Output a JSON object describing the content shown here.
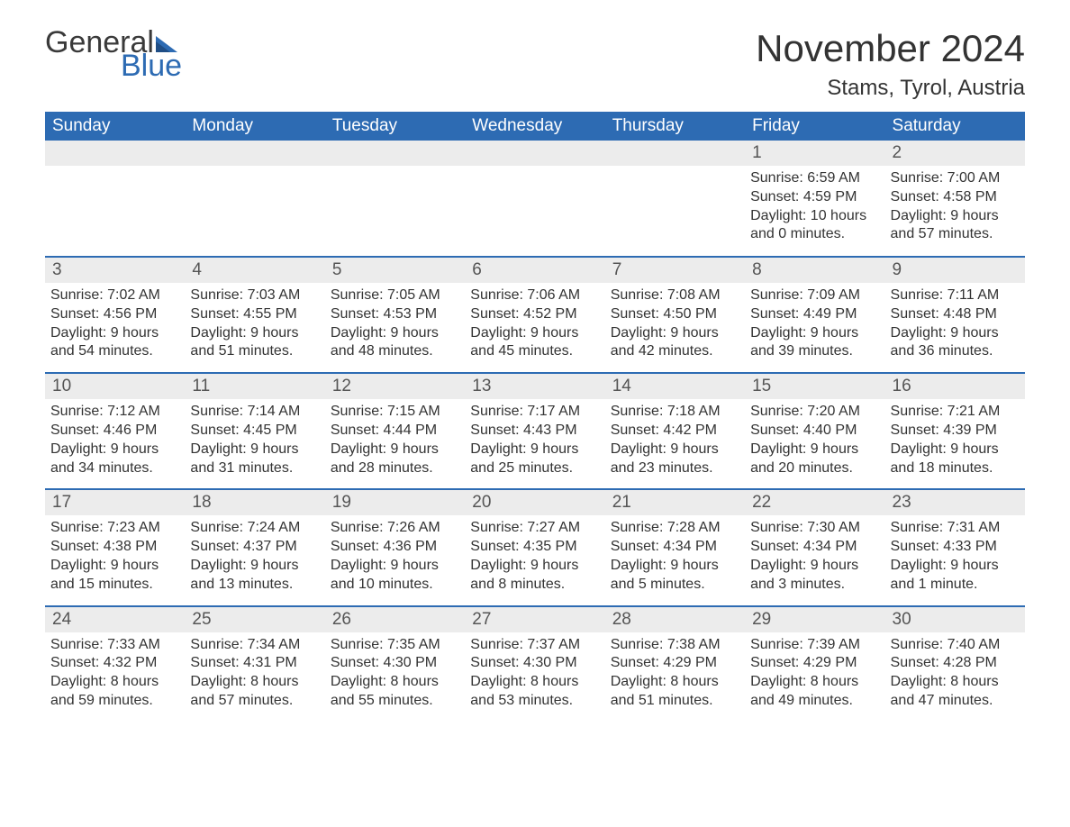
{
  "colors": {
    "header_bg": "#2d6bb3",
    "header_text": "#ffffff",
    "daynum_bg": "#ececec",
    "body_text": "#333333",
    "week_border": "#2d6bb3",
    "logo_gray": "#3a3a3a",
    "logo_blue": "#2d6bb3"
  },
  "logo": {
    "part1": "General",
    "part2": "Blue"
  },
  "title": "November 2024",
  "location": "Stams, Tyrol, Austria",
  "weekdays": [
    "Sunday",
    "Monday",
    "Tuesday",
    "Wednesday",
    "Thursday",
    "Friday",
    "Saturday"
  ],
  "weeks": [
    [
      {
        "n": "",
        "sr": "",
        "ss": "",
        "dl": ""
      },
      {
        "n": "",
        "sr": "",
        "ss": "",
        "dl": ""
      },
      {
        "n": "",
        "sr": "",
        "ss": "",
        "dl": ""
      },
      {
        "n": "",
        "sr": "",
        "ss": "",
        "dl": ""
      },
      {
        "n": "",
        "sr": "",
        "ss": "",
        "dl": ""
      },
      {
        "n": "1",
        "sr": "Sunrise: 6:59 AM",
        "ss": "Sunset: 4:59 PM",
        "dl": "Daylight: 10 hours and 0 minutes."
      },
      {
        "n": "2",
        "sr": "Sunrise: 7:00 AM",
        "ss": "Sunset: 4:58 PM",
        "dl": "Daylight: 9 hours and 57 minutes."
      }
    ],
    [
      {
        "n": "3",
        "sr": "Sunrise: 7:02 AM",
        "ss": "Sunset: 4:56 PM",
        "dl": "Daylight: 9 hours and 54 minutes."
      },
      {
        "n": "4",
        "sr": "Sunrise: 7:03 AM",
        "ss": "Sunset: 4:55 PM",
        "dl": "Daylight: 9 hours and 51 minutes."
      },
      {
        "n": "5",
        "sr": "Sunrise: 7:05 AM",
        "ss": "Sunset: 4:53 PM",
        "dl": "Daylight: 9 hours and 48 minutes."
      },
      {
        "n": "6",
        "sr": "Sunrise: 7:06 AM",
        "ss": "Sunset: 4:52 PM",
        "dl": "Daylight: 9 hours and 45 minutes."
      },
      {
        "n": "7",
        "sr": "Sunrise: 7:08 AM",
        "ss": "Sunset: 4:50 PM",
        "dl": "Daylight: 9 hours and 42 minutes."
      },
      {
        "n": "8",
        "sr": "Sunrise: 7:09 AM",
        "ss": "Sunset: 4:49 PM",
        "dl": "Daylight: 9 hours and 39 minutes."
      },
      {
        "n": "9",
        "sr": "Sunrise: 7:11 AM",
        "ss": "Sunset: 4:48 PM",
        "dl": "Daylight: 9 hours and 36 minutes."
      }
    ],
    [
      {
        "n": "10",
        "sr": "Sunrise: 7:12 AM",
        "ss": "Sunset: 4:46 PM",
        "dl": "Daylight: 9 hours and 34 minutes."
      },
      {
        "n": "11",
        "sr": "Sunrise: 7:14 AM",
        "ss": "Sunset: 4:45 PM",
        "dl": "Daylight: 9 hours and 31 minutes."
      },
      {
        "n": "12",
        "sr": "Sunrise: 7:15 AM",
        "ss": "Sunset: 4:44 PM",
        "dl": "Daylight: 9 hours and 28 minutes."
      },
      {
        "n": "13",
        "sr": "Sunrise: 7:17 AM",
        "ss": "Sunset: 4:43 PM",
        "dl": "Daylight: 9 hours and 25 minutes."
      },
      {
        "n": "14",
        "sr": "Sunrise: 7:18 AM",
        "ss": "Sunset: 4:42 PM",
        "dl": "Daylight: 9 hours and 23 minutes."
      },
      {
        "n": "15",
        "sr": "Sunrise: 7:20 AM",
        "ss": "Sunset: 4:40 PM",
        "dl": "Daylight: 9 hours and 20 minutes."
      },
      {
        "n": "16",
        "sr": "Sunrise: 7:21 AM",
        "ss": "Sunset: 4:39 PM",
        "dl": "Daylight: 9 hours and 18 minutes."
      }
    ],
    [
      {
        "n": "17",
        "sr": "Sunrise: 7:23 AM",
        "ss": "Sunset: 4:38 PM",
        "dl": "Daylight: 9 hours and 15 minutes."
      },
      {
        "n": "18",
        "sr": "Sunrise: 7:24 AM",
        "ss": "Sunset: 4:37 PM",
        "dl": "Daylight: 9 hours and 13 minutes."
      },
      {
        "n": "19",
        "sr": "Sunrise: 7:26 AM",
        "ss": "Sunset: 4:36 PM",
        "dl": "Daylight: 9 hours and 10 minutes."
      },
      {
        "n": "20",
        "sr": "Sunrise: 7:27 AM",
        "ss": "Sunset: 4:35 PM",
        "dl": "Daylight: 9 hours and 8 minutes."
      },
      {
        "n": "21",
        "sr": "Sunrise: 7:28 AM",
        "ss": "Sunset: 4:34 PM",
        "dl": "Daylight: 9 hours and 5 minutes."
      },
      {
        "n": "22",
        "sr": "Sunrise: 7:30 AM",
        "ss": "Sunset: 4:34 PM",
        "dl": "Daylight: 9 hours and 3 minutes."
      },
      {
        "n": "23",
        "sr": "Sunrise: 7:31 AM",
        "ss": "Sunset: 4:33 PM",
        "dl": "Daylight: 9 hours and 1 minute."
      }
    ],
    [
      {
        "n": "24",
        "sr": "Sunrise: 7:33 AM",
        "ss": "Sunset: 4:32 PM",
        "dl": "Daylight: 8 hours and 59 minutes."
      },
      {
        "n": "25",
        "sr": "Sunrise: 7:34 AM",
        "ss": "Sunset: 4:31 PM",
        "dl": "Daylight: 8 hours and 57 minutes."
      },
      {
        "n": "26",
        "sr": "Sunrise: 7:35 AM",
        "ss": "Sunset: 4:30 PM",
        "dl": "Daylight: 8 hours and 55 minutes."
      },
      {
        "n": "27",
        "sr": "Sunrise: 7:37 AM",
        "ss": "Sunset: 4:30 PM",
        "dl": "Daylight: 8 hours and 53 minutes."
      },
      {
        "n": "28",
        "sr": "Sunrise: 7:38 AM",
        "ss": "Sunset: 4:29 PM",
        "dl": "Daylight: 8 hours and 51 minutes."
      },
      {
        "n": "29",
        "sr": "Sunrise: 7:39 AM",
        "ss": "Sunset: 4:29 PM",
        "dl": "Daylight: 8 hours and 49 minutes."
      },
      {
        "n": "30",
        "sr": "Sunrise: 7:40 AM",
        "ss": "Sunset: 4:28 PM",
        "dl": "Daylight: 8 hours and 47 minutes."
      }
    ]
  ]
}
